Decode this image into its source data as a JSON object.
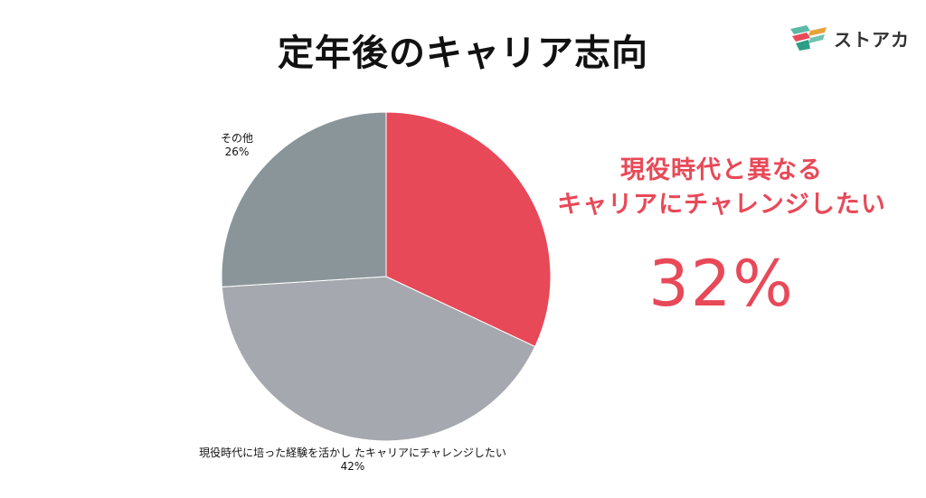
{
  "title": "定年後のキャリア志向",
  "logo": {
    "text": "ストアカ",
    "icon": "stacked-book-logo-icon"
  },
  "chart_data": {
    "type": "pie",
    "slices": [
      {
        "label": "現役時代と異なるキャリアにチャレンジしたい",
        "value": 32,
        "value_label": "32%",
        "color": "#e84958"
      },
      {
        "label": "現役時代に培った経験を活かしたキャリアにチャレンジしたい",
        "value": 42,
        "value_label": "42%",
        "color": "#a5a8ae"
      },
      {
        "label": "その他",
        "value": 26,
        "value_label": "26%",
        "color": "#8a9599"
      }
    ],
    "start_angle": "12 o'clock",
    "direction": "clockwise"
  },
  "labels": {
    "other_name": "その他",
    "other_pct": "26%",
    "reuse_name": "現役時代に培った経験を活かし たキャリアにチャレンジしたい",
    "reuse_pct": "42%"
  },
  "callout": {
    "line1": "現役時代と異なる",
    "line2": "キャリアにチャレンジしたい",
    "value": "32%",
    "color": "#e84958"
  }
}
